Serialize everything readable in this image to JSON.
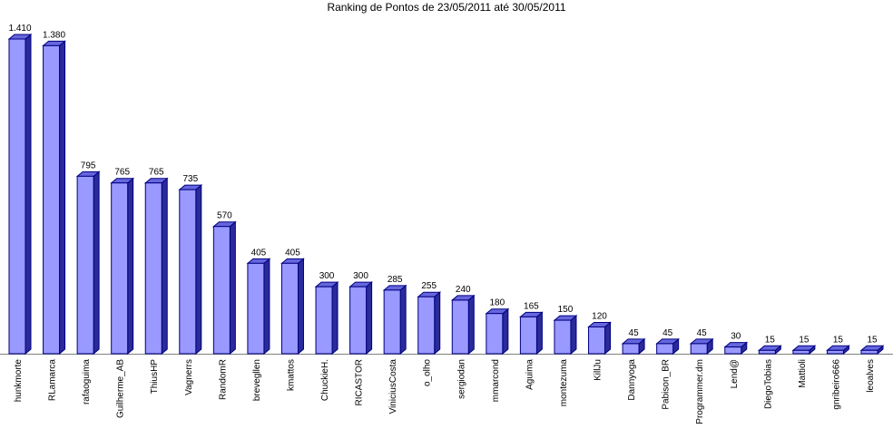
{
  "chart_data": {
    "type": "bar3d",
    "title": "Ranking de Pontos de 23/05/2011 até 30/05/2011",
    "categories": [
      "hunkmorte",
      "RLamarca",
      "rafaoguima",
      "Guilherme_AB",
      "ThiusHP",
      "Vagnerrs",
      "RandomR",
      "brevegllen",
      "kmattos",
      "ChuckieH.",
      "RICASTOR",
      "ViniciusCosta",
      "o_olho",
      "sergiodan",
      "mmarcond",
      "Aguima",
      "montezuma",
      "KillJu",
      "Dannyoga",
      "Pabison_BR",
      "Programmer.dm",
      "Lend@",
      "DiegoTobias",
      "Mattioli",
      "gnribeiro666",
      "leoalves"
    ],
    "values": [
      1410,
      1380,
      795,
      765,
      765,
      735,
      570,
      405,
      405,
      300,
      300,
      285,
      255,
      240,
      180,
      165,
      150,
      120,
      45,
      45,
      45,
      30,
      15,
      15,
      15,
      15
    ],
    "value_labels": [
      "1.410",
      "1.380",
      "795",
      "765",
      "765",
      "735",
      "570",
      "405",
      "405",
      "300",
      "300",
      "285",
      "255",
      "240",
      "180",
      "165",
      "150",
      "120",
      "45",
      "45",
      "45",
      "30",
      "15",
      "15",
      "15",
      "15"
    ],
    "color": "#9999ff"
  }
}
